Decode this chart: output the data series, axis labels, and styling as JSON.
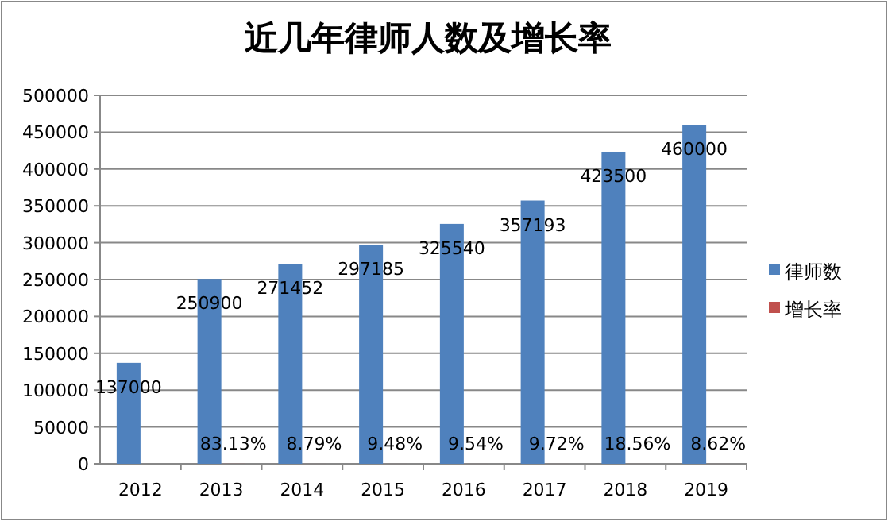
{
  "chart_data": {
    "type": "bar",
    "title": "近几年律师人数及增长率",
    "categories": [
      "2012",
      "2013",
      "2014",
      "2015",
      "2016",
      "2017",
      "2018",
      "2019"
    ],
    "series": [
      {
        "name": "律师数",
        "color": "#4f81bd",
        "values": [
          137000,
          250900,
          271452,
          297185,
          325540,
          357193,
          423500,
          460000
        ],
        "value_labels": [
          "137000",
          "250900",
          "271452",
          "297185",
          "325540",
          "357193",
          "423500",
          "460000"
        ]
      },
      {
        "name": "增长率",
        "color": "#c0504d",
        "values": [
          null,
          83.13,
          8.79,
          9.48,
          9.54,
          9.72,
          18.56,
          8.62
        ],
        "value_labels": [
          null,
          "83.13%",
          "8.79%",
          "9.48%",
          "9.54%",
          "9.72%",
          "18.56%",
          "8.62%"
        ]
      }
    ],
    "ylim": [
      0,
      500000
    ],
    "yticks": [
      0,
      50000,
      100000,
      150000,
      200000,
      250000,
      300000,
      350000,
      400000,
      450000,
      500000
    ],
    "grid": "y",
    "legend": "right"
  }
}
